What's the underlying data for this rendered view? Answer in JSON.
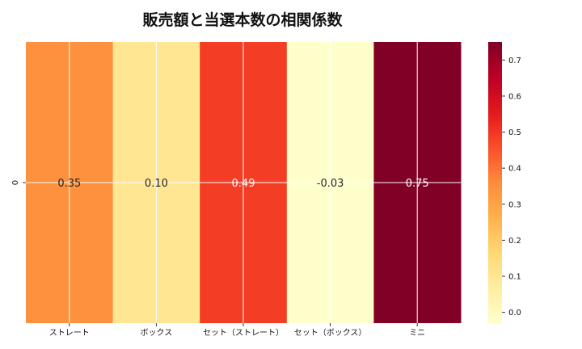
{
  "chart_data": {
    "type": "heatmap",
    "title": "販売額と当選本数の相関係数",
    "row_labels": [
      "0"
    ],
    "categories": [
      "ストレート",
      "ボックス",
      "セット（ストレート）",
      "セット（ボックス）",
      "ミニ"
    ],
    "values": [
      [
        0.35,
        0.1,
        0.49,
        -0.03,
        0.75
      ]
    ],
    "value_labels": [
      "0.35",
      "0.10",
      "0.49",
      "-0.03",
      "0.75"
    ],
    "colormap": "YlOrRd",
    "color_range": [
      -0.03,
      0.75
    ],
    "colorbar_ticks": [
      0.0,
      0.1,
      0.2,
      0.3,
      0.4,
      0.5,
      0.6,
      0.7
    ],
    "colorbar_tick_labels": [
      "0.0",
      "0.1",
      "0.2",
      "0.3",
      "0.4",
      "0.5",
      "0.6",
      "0.7"
    ],
    "grid": true,
    "colorbar": "right"
  }
}
